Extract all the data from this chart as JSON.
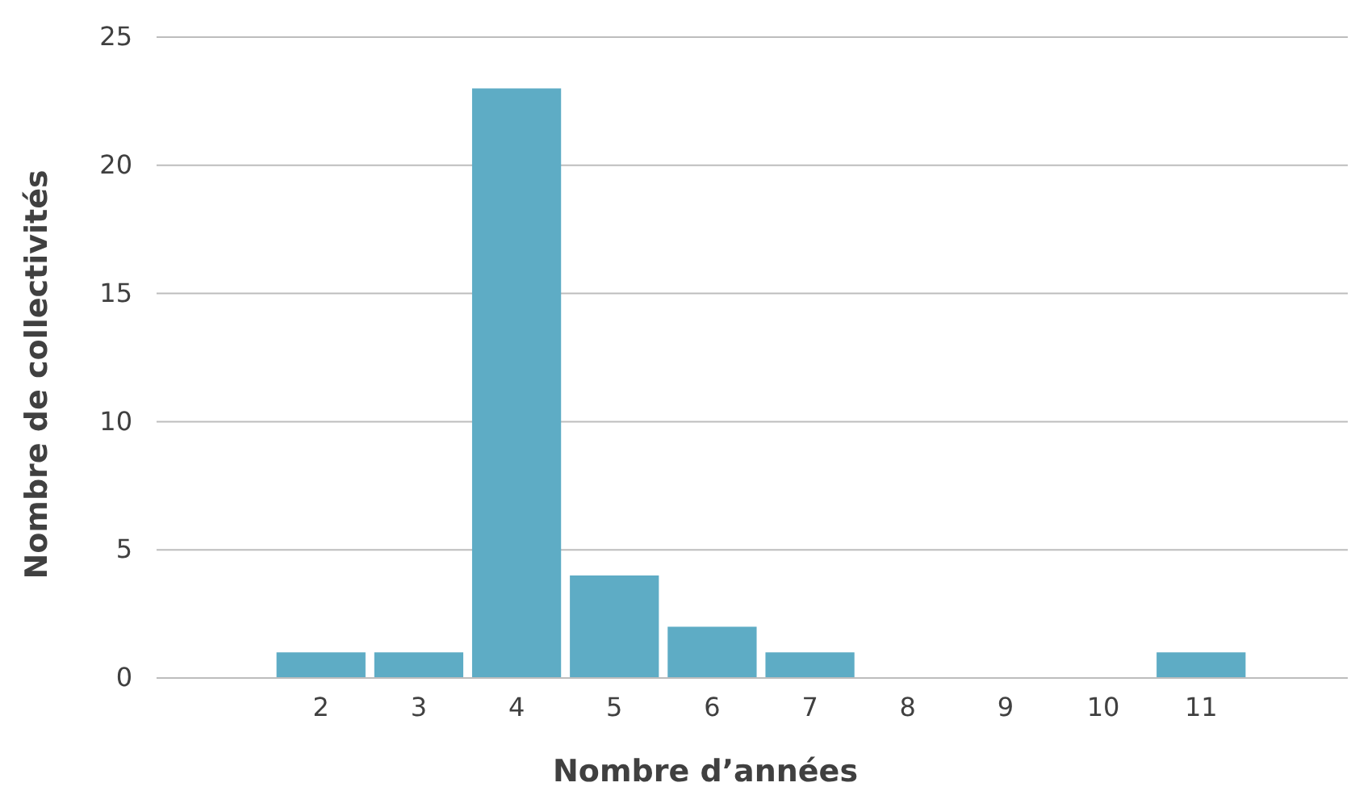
{
  "chart_data": {
    "type": "bar",
    "xlabel": "Nombre d’années",
    "ylabel": "Nombre de collectivités",
    "categories": [
      null,
      "2",
      "3",
      "4",
      "5",
      "6",
      "7",
      "8",
      "9",
      "10",
      "11",
      null
    ],
    "values": [
      0,
      1,
      1,
      23,
      4,
      2,
      1,
      0,
      0,
      0,
      1,
      0
    ],
    "color": "#5eacc5",
    "ylim": [
      0,
      25
    ],
    "yticks": [
      0,
      5,
      10,
      15,
      20,
      25
    ],
    "grid": "y"
  }
}
